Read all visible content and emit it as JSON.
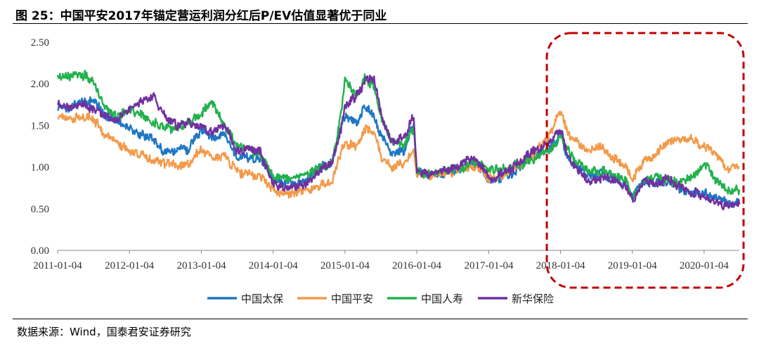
{
  "figure": {
    "title": "图 25：中国平安2017年锚定营运利润分红后P/EV估值显著优于同业",
    "source": "数据来源：Wind，国泰君安证券研究"
  },
  "chart_data": {
    "type": "line",
    "title": "",
    "xlabel": "",
    "ylabel": "",
    "ylim": [
      0,
      2.5
    ],
    "yticks": [
      "0.00",
      "0.50",
      "1.00",
      "1.50",
      "2.00",
      "2.50"
    ],
    "xlim": [
      "2011-01-04",
      "2020-07-01"
    ],
    "xticks": [
      "2011-01-04",
      "2012-01-04",
      "2013-01-04",
      "2014-01-04",
      "2015-01-04",
      "2016-01-04",
      "2017-01-04",
      "2018-01-04",
      "2019-01-04",
      "2020-01-04"
    ],
    "grid": false,
    "legend": "bottom",
    "highlight": {
      "type": "dashed-rounded-rect",
      "from": "2017-12-01",
      "to": "2020-07-01",
      "color": "#c00000"
    },
    "series": [
      {
        "name": "中国太保",
        "color": "#1f77c4",
        "points": [
          [
            "2011-01-04",
            1.74
          ],
          [
            "2011-03-01",
            1.7
          ],
          [
            "2011-05-01",
            1.78
          ],
          [
            "2011-07-01",
            1.82
          ],
          [
            "2011-09-01",
            1.62
          ],
          [
            "2011-11-01",
            1.55
          ],
          [
            "2012-01-04",
            1.45
          ],
          [
            "2012-03-01",
            1.4
          ],
          [
            "2012-05-01",
            1.35
          ],
          [
            "2012-07-01",
            1.18
          ],
          [
            "2012-09-01",
            1.2
          ],
          [
            "2012-11-01",
            1.22
          ],
          [
            "2013-01-04",
            1.45
          ],
          [
            "2013-03-01",
            1.35
          ],
          [
            "2013-05-01",
            1.4
          ],
          [
            "2013-07-01",
            1.12
          ],
          [
            "2013-09-01",
            1.12
          ],
          [
            "2013-11-01",
            1.1
          ],
          [
            "2014-01-04",
            0.85
          ],
          [
            "2014-03-01",
            0.82
          ],
          [
            "2014-05-01",
            0.8
          ],
          [
            "2014-07-01",
            0.85
          ],
          [
            "2014-09-01",
            1.02
          ],
          [
            "2014-11-01",
            1.05
          ],
          [
            "2014-12-15",
            1.5
          ],
          [
            "2015-01-04",
            1.6
          ],
          [
            "2015-03-01",
            1.55
          ],
          [
            "2015-04-20",
            1.72
          ],
          [
            "2015-06-01",
            1.6
          ],
          [
            "2015-07-10",
            1.35
          ],
          [
            "2015-09-01",
            1.15
          ],
          [
            "2015-11-01",
            1.18
          ],
          [
            "2015-12-20",
            1.55
          ],
          [
            "2016-01-04",
            0.92
          ],
          [
            "2016-03-01",
            0.9
          ],
          [
            "2016-05-01",
            0.92
          ],
          [
            "2016-07-01",
            0.95
          ],
          [
            "2016-09-01",
            1.0
          ],
          [
            "2016-11-01",
            1.05
          ],
          [
            "2017-01-04",
            0.85
          ],
          [
            "2017-03-01",
            0.87
          ],
          [
            "2017-05-01",
            0.92
          ],
          [
            "2017-07-01",
            1.05
          ],
          [
            "2017-09-01",
            1.15
          ],
          [
            "2017-11-01",
            1.2
          ],
          [
            "2018-01-04",
            1.4
          ],
          [
            "2018-02-10",
            1.1
          ],
          [
            "2018-04-01",
            1.0
          ],
          [
            "2018-06-01",
            0.88
          ],
          [
            "2018-08-01",
            0.92
          ],
          [
            "2018-10-01",
            0.85
          ],
          [
            "2018-12-01",
            0.8
          ],
          [
            "2019-01-04",
            0.62
          ],
          [
            "2019-03-01",
            0.82
          ],
          [
            "2019-05-01",
            0.8
          ],
          [
            "2019-07-01",
            0.82
          ],
          [
            "2019-09-01",
            0.75
          ],
          [
            "2019-11-01",
            0.68
          ],
          [
            "2020-01-04",
            0.68
          ],
          [
            "2020-03-01",
            0.62
          ],
          [
            "2020-05-01",
            0.57
          ],
          [
            "2020-07-01",
            0.56
          ]
        ]
      },
      {
        "name": "中国平安",
        "color": "#f39a4a",
        "points": [
          [
            "2011-01-04",
            1.65
          ],
          [
            "2011-03-01",
            1.58
          ],
          [
            "2011-05-01",
            1.62
          ],
          [
            "2011-07-01",
            1.58
          ],
          [
            "2011-09-01",
            1.4
          ],
          [
            "2011-11-01",
            1.3
          ],
          [
            "2012-01-04",
            1.2
          ],
          [
            "2012-03-01",
            1.15
          ],
          [
            "2012-05-01",
            1.08
          ],
          [
            "2012-07-01",
            1.05
          ],
          [
            "2012-09-01",
            1.02
          ],
          [
            "2012-11-01",
            1.06
          ],
          [
            "2013-01-04",
            1.22
          ],
          [
            "2013-03-01",
            1.1
          ],
          [
            "2013-05-01",
            1.12
          ],
          [
            "2013-07-01",
            0.95
          ],
          [
            "2013-09-01",
            0.92
          ],
          [
            "2013-11-01",
            0.9
          ],
          [
            "2014-01-04",
            0.72
          ],
          [
            "2014-03-01",
            0.7
          ],
          [
            "2014-05-01",
            0.68
          ],
          [
            "2014-07-01",
            0.72
          ],
          [
            "2014-09-01",
            0.78
          ],
          [
            "2014-11-01",
            0.8
          ],
          [
            "2014-12-15",
            1.2
          ],
          [
            "2015-01-04",
            1.3
          ],
          [
            "2015-03-01",
            1.25
          ],
          [
            "2015-04-20",
            1.45
          ],
          [
            "2015-06-01",
            1.4
          ],
          [
            "2015-07-10",
            1.1
          ],
          [
            "2015-09-01",
            1.0
          ],
          [
            "2015-11-01",
            1.05
          ],
          [
            "2015-12-20",
            1.2
          ],
          [
            "2016-01-04",
            0.88
          ],
          [
            "2016-03-01",
            0.9
          ],
          [
            "2016-05-01",
            0.92
          ],
          [
            "2016-07-01",
            0.95
          ],
          [
            "2016-09-01",
            0.98
          ],
          [
            "2016-11-01",
            1.02
          ],
          [
            "2017-01-04",
            0.88
          ],
          [
            "2017-03-01",
            0.9
          ],
          [
            "2017-05-01",
            0.95
          ],
          [
            "2017-07-01",
            1.05
          ],
          [
            "2017-09-01",
            1.18
          ],
          [
            "2017-11-01",
            1.35
          ],
          [
            "2018-01-04",
            1.7
          ],
          [
            "2018-02-10",
            1.4
          ],
          [
            "2018-04-01",
            1.3
          ],
          [
            "2018-06-01",
            1.2
          ],
          [
            "2018-08-01",
            1.25
          ],
          [
            "2018-10-01",
            1.1
          ],
          [
            "2018-12-01",
            1.0
          ],
          [
            "2019-01-04",
            0.85
          ],
          [
            "2019-03-01",
            1.05
          ],
          [
            "2019-05-01",
            1.15
          ],
          [
            "2019-07-01",
            1.28
          ],
          [
            "2019-09-01",
            1.33
          ],
          [
            "2019-11-01",
            1.35
          ],
          [
            "2020-01-04",
            1.25
          ],
          [
            "2020-03-01",
            1.15
          ],
          [
            "2020-05-01",
            1.0
          ],
          [
            "2020-07-01",
            1.0
          ]
        ]
      },
      {
        "name": "中国人寿",
        "color": "#22b14c",
        "points": [
          [
            "2011-01-04",
            2.1
          ],
          [
            "2011-03-01",
            2.08
          ],
          [
            "2011-05-01",
            2.12
          ],
          [
            "2011-07-01",
            2.05
          ],
          [
            "2011-09-01",
            1.72
          ],
          [
            "2011-11-01",
            1.62
          ],
          [
            "2012-01-04",
            1.7
          ],
          [
            "2012-03-01",
            1.62
          ],
          [
            "2012-05-01",
            1.55
          ],
          [
            "2012-07-01",
            1.45
          ],
          [
            "2012-09-01",
            1.48
          ],
          [
            "2012-11-01",
            1.52
          ],
          [
            "2013-01-04",
            1.65
          ],
          [
            "2013-03-01",
            1.78
          ],
          [
            "2013-05-01",
            1.5
          ],
          [
            "2013-07-01",
            1.25
          ],
          [
            "2013-09-01",
            1.2
          ],
          [
            "2013-11-01",
            1.15
          ],
          [
            "2014-01-04",
            0.9
          ],
          [
            "2014-03-01",
            0.85
          ],
          [
            "2014-05-01",
            0.88
          ],
          [
            "2014-07-01",
            0.9
          ],
          [
            "2014-09-01",
            1.0
          ],
          [
            "2014-11-01",
            1.05
          ],
          [
            "2014-12-15",
            1.65
          ],
          [
            "2015-01-04",
            2.05
          ],
          [
            "2015-03-01",
            1.85
          ],
          [
            "2015-04-20",
            2.08
          ],
          [
            "2015-06-01",
            1.95
          ],
          [
            "2015-07-10",
            1.6
          ],
          [
            "2015-09-01",
            1.3
          ],
          [
            "2015-11-01",
            1.28
          ],
          [
            "2015-12-20",
            1.45
          ],
          [
            "2016-01-04",
            0.95
          ],
          [
            "2016-03-01",
            0.92
          ],
          [
            "2016-05-01",
            0.95
          ],
          [
            "2016-07-01",
            0.98
          ],
          [
            "2016-09-01",
            1.0
          ],
          [
            "2016-11-01",
            1.08
          ],
          [
            "2017-01-04",
            0.97
          ],
          [
            "2017-03-01",
            0.97
          ],
          [
            "2017-05-01",
            1.0
          ],
          [
            "2017-07-01",
            1.05
          ],
          [
            "2017-09-01",
            1.12
          ],
          [
            "2017-11-01",
            1.18
          ],
          [
            "2018-01-04",
            1.35
          ],
          [
            "2018-02-10",
            1.2
          ],
          [
            "2018-04-01",
            1.05
          ],
          [
            "2018-06-01",
            0.95
          ],
          [
            "2018-08-01",
            0.95
          ],
          [
            "2018-10-01",
            0.9
          ],
          [
            "2018-12-01",
            0.85
          ],
          [
            "2019-01-04",
            0.63
          ],
          [
            "2019-03-01",
            0.85
          ],
          [
            "2019-05-01",
            0.88
          ],
          [
            "2019-07-01",
            0.85
          ],
          [
            "2019-09-01",
            0.8
          ],
          [
            "2019-11-01",
            0.88
          ],
          [
            "2020-01-04",
            1.05
          ],
          [
            "2020-03-01",
            0.85
          ],
          [
            "2020-05-01",
            0.75
          ],
          [
            "2020-07-01",
            0.73
          ]
        ]
      },
      {
        "name": "新华保险",
        "color": "#7030a0",
        "points": [
          [
            "2011-01-04",
            1.75
          ],
          [
            "2011-03-01",
            1.7
          ],
          [
            "2011-05-01",
            1.75
          ],
          [
            "2011-07-01",
            1.7
          ],
          [
            "2011-09-01",
            1.6
          ],
          [
            "2011-11-01",
            1.55
          ],
          [
            "2012-01-04",
            1.7
          ],
          [
            "2012-03-01",
            1.8
          ],
          [
            "2012-05-01",
            1.85
          ],
          [
            "2012-07-01",
            1.62
          ],
          [
            "2012-09-01",
            1.5
          ],
          [
            "2012-11-01",
            1.52
          ],
          [
            "2013-01-04",
            1.48
          ],
          [
            "2013-03-01",
            1.42
          ],
          [
            "2013-05-01",
            1.52
          ],
          [
            "2013-07-01",
            1.2
          ],
          [
            "2013-09-01",
            1.22
          ],
          [
            "2013-11-01",
            1.18
          ],
          [
            "2014-01-04",
            0.78
          ],
          [
            "2014-03-01",
            0.75
          ],
          [
            "2014-05-01",
            0.78
          ],
          [
            "2014-07-01",
            0.82
          ],
          [
            "2014-09-01",
            0.95
          ],
          [
            "2014-11-01",
            1.05
          ],
          [
            "2014-12-15",
            1.45
          ],
          [
            "2015-01-04",
            1.75
          ],
          [
            "2015-03-01",
            1.85
          ],
          [
            "2015-04-20",
            2.05
          ],
          [
            "2015-06-01",
            2.05
          ],
          [
            "2015-07-10",
            1.6
          ],
          [
            "2015-09-01",
            1.3
          ],
          [
            "2015-11-01",
            1.35
          ],
          [
            "2015-12-20",
            1.65
          ],
          [
            "2016-01-04",
            0.95
          ],
          [
            "2016-03-01",
            0.92
          ],
          [
            "2016-05-01",
            0.95
          ],
          [
            "2016-07-01",
            0.98
          ],
          [
            "2016-09-01",
            1.05
          ],
          [
            "2016-11-01",
            1.1
          ],
          [
            "2017-01-04",
            0.88
          ],
          [
            "2017-03-01",
            0.9
          ],
          [
            "2017-05-01",
            0.98
          ],
          [
            "2017-07-01",
            1.1
          ],
          [
            "2017-09-01",
            1.22
          ],
          [
            "2017-11-01",
            1.28
          ],
          [
            "2018-01-04",
            1.45
          ],
          [
            "2018-02-10",
            1.15
          ],
          [
            "2018-04-01",
            0.95
          ],
          [
            "2018-06-01",
            0.85
          ],
          [
            "2018-08-01",
            0.88
          ],
          [
            "2018-10-01",
            0.85
          ],
          [
            "2018-12-01",
            0.78
          ],
          [
            "2019-01-04",
            0.6
          ],
          [
            "2019-03-01",
            0.82
          ],
          [
            "2019-05-01",
            0.8
          ],
          [
            "2019-07-01",
            0.85
          ],
          [
            "2019-09-01",
            0.78
          ],
          [
            "2019-11-01",
            0.7
          ],
          [
            "2020-01-04",
            0.65
          ],
          [
            "2020-03-01",
            0.58
          ],
          [
            "2020-05-01",
            0.53
          ],
          [
            "2020-07-01",
            0.55
          ]
        ]
      }
    ]
  }
}
